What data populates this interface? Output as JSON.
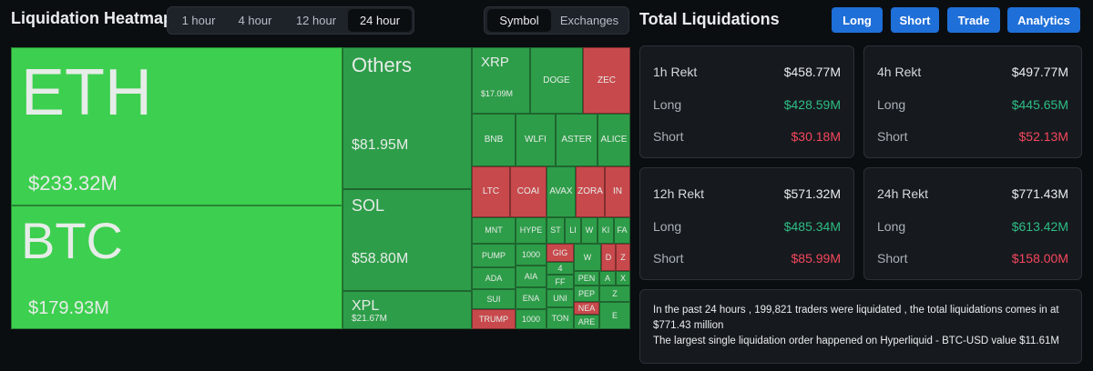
{
  "header": {
    "title": "Liquidation Heatmap",
    "time_tabs": [
      "1 hour",
      "4 hour",
      "12 hour",
      "24 hour"
    ],
    "view_tabs": [
      "Symbol",
      "Exchanges"
    ]
  },
  "heatmap": {
    "tiles": [
      {
        "label": "ETH",
        "value": "$233.32M"
      },
      {
        "label": "BTC",
        "value": "$179.93M"
      },
      {
        "label": "Others",
        "value": "$81.95M"
      },
      {
        "label": "SOL",
        "value": "$58.80M"
      },
      {
        "label": "XPL",
        "value": "$21.67M"
      },
      {
        "label": "XRP",
        "value": "$17.09M"
      },
      {
        "label": "DOGE"
      },
      {
        "label": "ZEC"
      },
      {
        "label": "BNB"
      },
      {
        "label": "WLFI"
      },
      {
        "label": "ASTER"
      },
      {
        "label": "ALICE"
      },
      {
        "label": "LTC"
      },
      {
        "label": "COAI"
      },
      {
        "label": "AVAX"
      },
      {
        "label": "ZORA"
      },
      {
        "label": "IN"
      },
      {
        "label": "MNT"
      },
      {
        "label": "HYPE"
      },
      {
        "label": "ST"
      },
      {
        "label": "LI"
      },
      {
        "label": "W"
      },
      {
        "label": "KI"
      },
      {
        "label": "FA"
      },
      {
        "label": "PUMP"
      },
      {
        "label": "1000"
      },
      {
        "label": "GIG"
      },
      {
        "label": "W"
      },
      {
        "label": "D"
      },
      {
        "label": "Z"
      },
      {
        "label": "ADA"
      },
      {
        "label": "AIA"
      },
      {
        "label": "4"
      },
      {
        "label": "FF"
      },
      {
        "label": "PEN"
      },
      {
        "label": "A"
      },
      {
        "label": "X"
      },
      {
        "label": "SUI"
      },
      {
        "label": "ENA"
      },
      {
        "label": "UNI"
      },
      {
        "label": "PEP"
      },
      {
        "label": "Z"
      },
      {
        "label": "TRUMP"
      },
      {
        "label": "1000"
      },
      {
        "label": "TON"
      },
      {
        "label": "NEA"
      },
      {
        "label": "ARE"
      },
      {
        "label": "E"
      }
    ]
  },
  "totals": {
    "title": "Total Liquidations",
    "buttons": [
      "Long",
      "Short",
      "Trade",
      "Analytics"
    ],
    "cards": [
      {
        "title": "1h Rekt",
        "total": "$458.77M",
        "rows": [
          {
            "label": "Long",
            "value": "$428.59M"
          },
          {
            "label": "Short",
            "value": "$30.18M"
          }
        ]
      },
      {
        "title": "4h Rekt",
        "total": "$497.77M",
        "rows": [
          {
            "label": "Long",
            "value": "$445.65M"
          },
          {
            "label": "Short",
            "value": "$52.13M"
          }
        ]
      },
      {
        "title": "12h Rekt",
        "total": "$571.32M",
        "rows": [
          {
            "label": "Long",
            "value": "$485.34M"
          },
          {
            "label": "Short",
            "value": "$85.99M"
          }
        ]
      },
      {
        "title": "24h Rekt",
        "total": "$771.43M",
        "rows": [
          {
            "label": "Long",
            "value": "$613.42M"
          },
          {
            "label": "Short",
            "value": "$158.00M"
          }
        ]
      }
    ]
  },
  "summary": {
    "lines": [
      "In the past 24 hours , 199,821 traders were liquidated , the total liquidations comes in at $771.43 million",
      "The largest single liquidation order happened on Hyperliquid - BTC-USD value $11.61M"
    ]
  }
}
